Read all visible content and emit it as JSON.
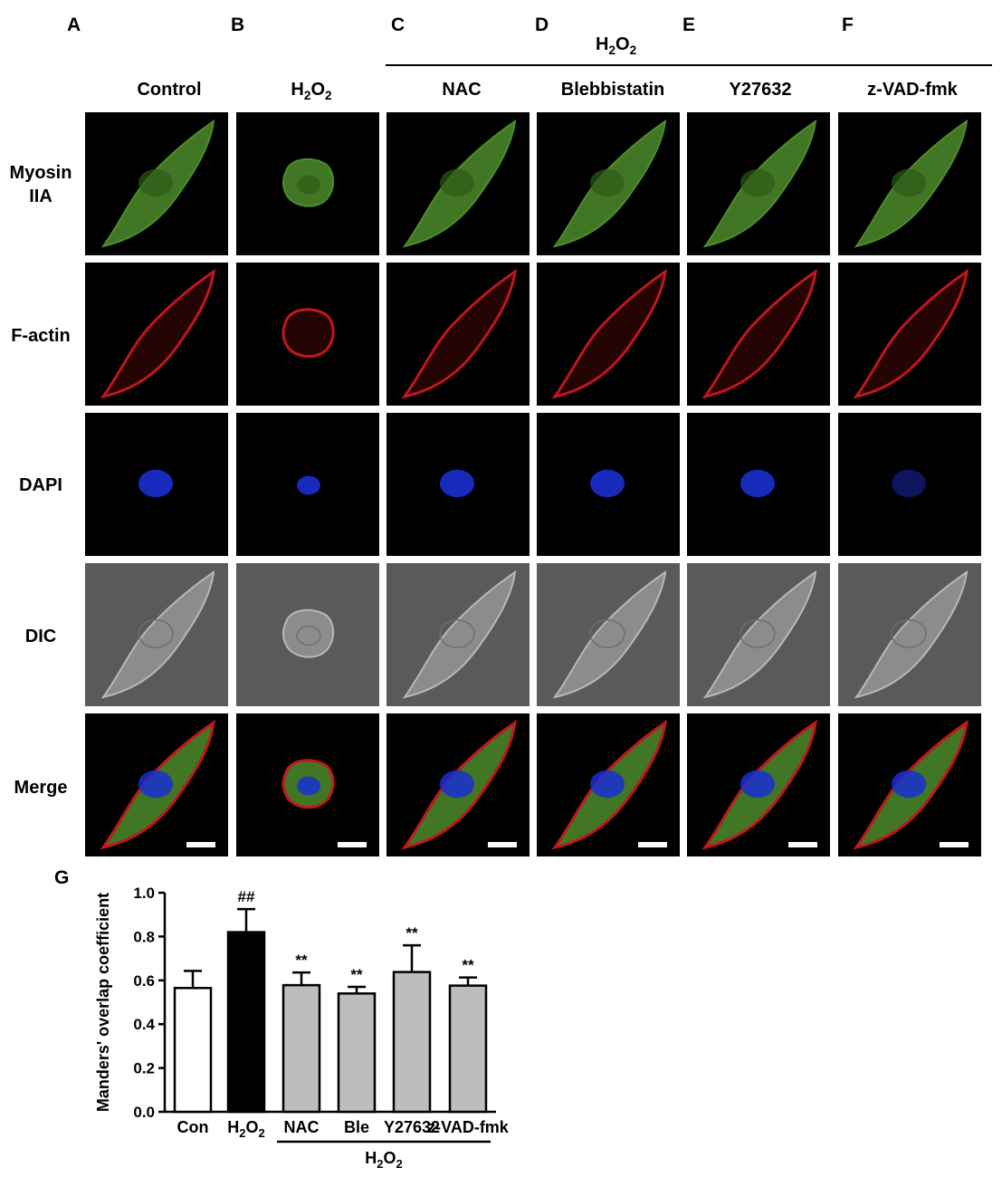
{
  "panel_letters": [
    "A",
    "B",
    "C",
    "D",
    "E",
    "F"
  ],
  "treatment_group": {
    "prefix": "H",
    "sub": "2",
    "mid": "O",
    "sub2": "2"
  },
  "columns": [
    {
      "label": "Control",
      "is_h2o2": false
    },
    {
      "label": "H2O2",
      "is_h2o2": true
    },
    {
      "label": "NAC",
      "is_h2o2": false
    },
    {
      "label": "Blebbistatin",
      "is_h2o2": false
    },
    {
      "label": "Y27632",
      "is_h2o2": false
    },
    {
      "label": "z-VAD-fmk",
      "is_h2o2": false
    }
  ],
  "rows": [
    {
      "line1": "Myosin",
      "line2": "IIA",
      "channel": "myosin"
    },
    {
      "line1": "F-actin",
      "line2": "",
      "channel": "actin"
    },
    {
      "line1": "DAPI",
      "line2": "",
      "channel": "dapi"
    },
    {
      "line1": "DIC",
      "line2": "",
      "channel": "dic"
    },
    {
      "line1": "Merge",
      "line2": "",
      "channel": "merge"
    }
  ],
  "colors": {
    "myosin": "#4c8c2a",
    "actin": "#c0161e",
    "dapi": "#1a2fd0",
    "dic_bg": "#5a5a5a",
    "dic_cell": "#8c8c8c",
    "bar_control": "#ffffff",
    "bar_h2o2": "#000000",
    "bar_treated": "#bdbdbd"
  },
  "chart_data": {
    "panel_letter": "G",
    "type": "bar",
    "ylabel": "Manders' overlap coefficient",
    "ylim": [
      0.0,
      1.0
    ],
    "yticks": [
      "0.0",
      "0.2",
      "0.4",
      "0.6",
      "0.8",
      "1.0"
    ],
    "categories": [
      "Con",
      "H2O2",
      "NAC",
      "Ble",
      "Y27632",
      "z-VAD-fmk"
    ],
    "values": [
      0.565,
      0.82,
      0.578,
      0.54,
      0.638,
      0.576
    ],
    "errors": [
      0.078,
      0.105,
      0.058,
      0.03,
      0.122,
      0.037
    ],
    "annotations": [
      "",
      "##",
      "**",
      "**",
      "**",
      "**"
    ],
    "group_label": "H2O2",
    "grid": false
  }
}
